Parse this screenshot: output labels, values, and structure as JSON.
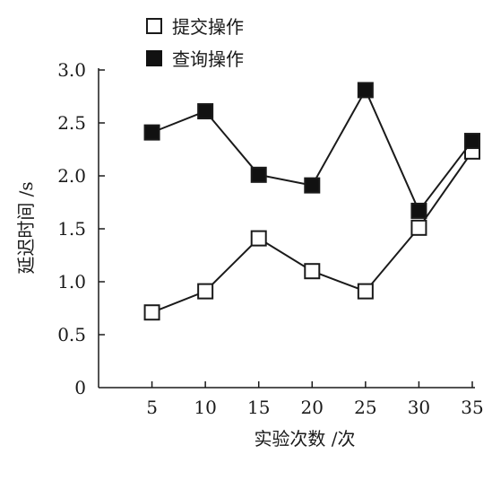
{
  "chart_data": {
    "type": "line",
    "x": [
      5,
      10,
      15,
      20,
      25,
      30,
      35
    ],
    "xlabel": "实验次数 /次",
    "ylabel": "延迟时间 /s",
    "xticks": [
      "5",
      "10",
      "15",
      "20",
      "25",
      "30",
      "35"
    ],
    "yticks": [
      "0",
      "0.5",
      "1.0",
      "1.5",
      "2.0",
      "2.5",
      "3.0"
    ],
    "xlim": [
      0,
      35
    ],
    "ylim": [
      0,
      3.0
    ],
    "grid": false,
    "legend_position": "top-center",
    "series": [
      {
        "name": "提交操作",
        "marker": "hollow-square",
        "values": [
          0.71,
          0.91,
          1.41,
          1.1,
          0.91,
          1.51,
          2.23
        ]
      },
      {
        "name": "查询操作",
        "marker": "filled-square",
        "values": [
          2.41,
          2.61,
          2.01,
          1.91,
          2.81,
          1.67,
          2.33
        ]
      }
    ]
  }
}
